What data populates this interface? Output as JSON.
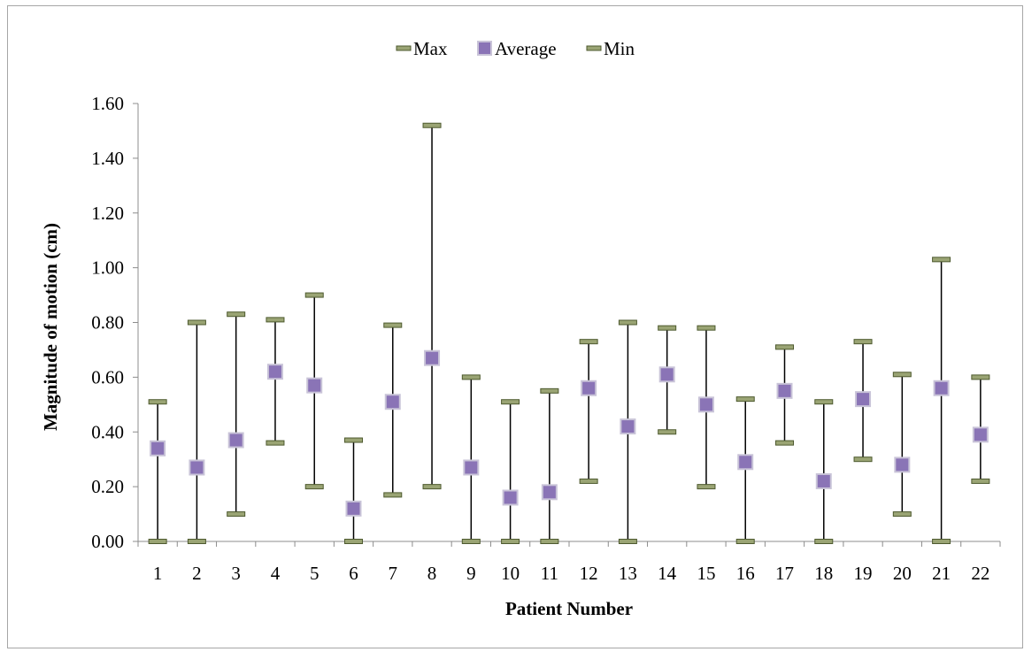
{
  "chart_data": {
    "type": "scatter",
    "xlabel": "Patient Number",
    "ylabel": "Magnitude of motion (cm)",
    "ylim": [
      0,
      1.6
    ],
    "y_ticks": [
      "0.00",
      "0.20",
      "0.40",
      "0.60",
      "0.80",
      "1.00",
      "1.20",
      "1.40",
      "1.60"
    ],
    "categories": [
      "1",
      "2",
      "3",
      "4",
      "5",
      "6",
      "7",
      "8",
      "9",
      "10",
      "11",
      "12",
      "13",
      "14",
      "15",
      "16",
      "17",
      "18",
      "19",
      "20",
      "21",
      "22"
    ],
    "legend_position": "top",
    "grid": false,
    "series": [
      {
        "name": "Max",
        "values": [
          0.51,
          0.8,
          0.83,
          0.81,
          0.9,
          0.37,
          0.79,
          1.52,
          0.6,
          0.51,
          0.55,
          0.73,
          0.8,
          0.78,
          0.78,
          0.52,
          0.71,
          0.51,
          0.73,
          0.61,
          1.03,
          0.6
        ]
      },
      {
        "name": "Average",
        "values": [
          0.34,
          0.27,
          0.37,
          0.62,
          0.57,
          0.12,
          0.51,
          0.67,
          0.27,
          0.16,
          0.18,
          0.56,
          0.42,
          0.61,
          0.5,
          0.29,
          0.55,
          0.22,
          0.52,
          0.28,
          0.56,
          0.39
        ]
      },
      {
        "name": "Min",
        "values": [
          0.0,
          0.0,
          0.1,
          0.36,
          0.2,
          0.0,
          0.17,
          0.2,
          0.0,
          0.0,
          0.0,
          0.22,
          0.0,
          0.4,
          0.2,
          0.0,
          0.36,
          0.0,
          0.3,
          0.1,
          0.0,
          0.22
        ]
      }
    ],
    "colors": {
      "max_min_marker": "#9aa474",
      "marker_edge": "#4e5a2f",
      "average_fill": "#8a74b6",
      "average_edge": "#c9c4d8",
      "axis": "#8c8c8c",
      "whisker": "#000000"
    }
  }
}
